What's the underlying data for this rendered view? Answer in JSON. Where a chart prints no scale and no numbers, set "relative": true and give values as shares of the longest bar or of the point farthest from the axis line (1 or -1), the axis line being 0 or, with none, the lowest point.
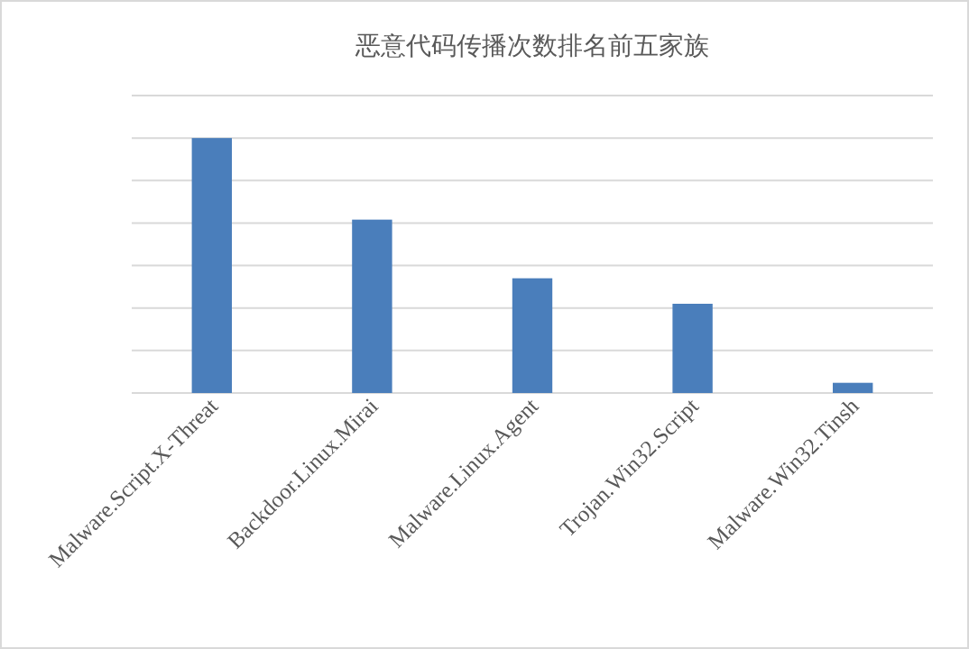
{
  "chart_data": {
    "type": "bar",
    "title": "恶意代码传播次数排名前五家族",
    "categories": [
      "Malware.Script.X-Threat",
      "Backdoor.Linux.Mirai",
      "Malware.Linux.Agent",
      "Trojan.Win32.Script",
      "Malware.Win32.Tinsh"
    ],
    "values": [
      1,
      0.68,
      0.45,
      0.35,
      0.04
    ],
    "color": "#4a7ebb",
    "relative": true,
    "grid": "y"
  }
}
